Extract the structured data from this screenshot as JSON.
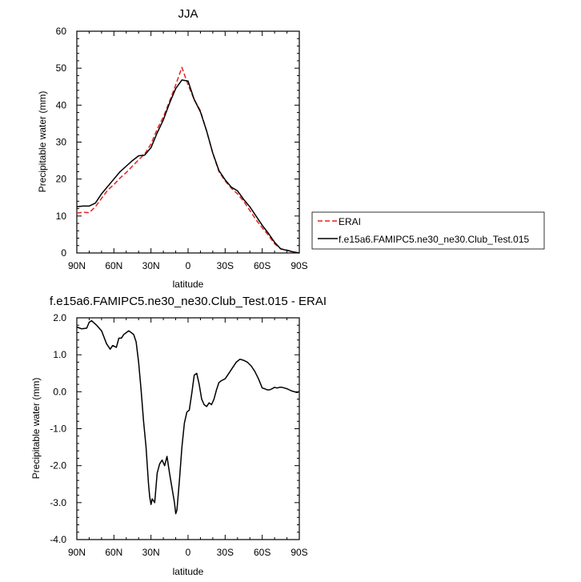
{
  "chart_data": [
    {
      "type": "line",
      "title": "JJA",
      "xlabel": "latitude",
      "ylabel": "Precipitable water (mm)",
      "xlim": [
        90,
        -90
      ],
      "ylim": [
        0,
        60
      ],
      "x_ticks": [
        90,
        60,
        30,
        0,
        -30,
        -60,
        -90
      ],
      "x_tick_labels": [
        "90N",
        "60N",
        "30N",
        "0",
        "30S",
        "60S",
        "90S"
      ],
      "y_ticks": [
        0,
        10,
        20,
        30,
        40,
        50,
        60
      ],
      "y_tick_labels": [
        "0",
        "10",
        "20",
        "30",
        "40",
        "50",
        "60"
      ],
      "grid": false,
      "legend": "right, outside",
      "series": [
        {
          "name": "ERAI",
          "color": "#e32222",
          "dash": "dashed",
          "x": [
            90,
            85,
            80,
            75,
            70,
            65,
            60,
            55,
            50,
            45,
            40,
            35,
            30,
            25,
            20,
            15,
            10,
            5,
            0,
            -5,
            -10,
            -15,
            -20,
            -25,
            -30,
            -35,
            -40,
            -45,
            -50,
            -55,
            -60,
            -65,
            -70,
            -75,
            -80,
            -85,
            -90
          ],
          "values": [
            10.8,
            11,
            10.9,
            12.5,
            14.8,
            17,
            18.5,
            20.3,
            21.8,
            23.5,
            25.2,
            26.8,
            29.5,
            33.5,
            36.8,
            41,
            45.5,
            50.2,
            45.5,
            41.5,
            38.5,
            33,
            27,
            22,
            19.5,
            17.5,
            16,
            14,
            11.5,
            9,
            6.8,
            4.8,
            2.5,
            1.1,
            0.8,
            0.3,
            0
          ]
        },
        {
          "name": "f.e15a6.FAMIPC5.ne30_ne30.Club_Test.015",
          "color": "#000000",
          "dash": "solid",
          "x": [
            90,
            85,
            80,
            75,
            70,
            65,
            60,
            55,
            50,
            45,
            40,
            35,
            30,
            25,
            20,
            15,
            10,
            5,
            0,
            -5,
            -10,
            -15,
            -20,
            -25,
            -30,
            -35,
            -40,
            -45,
            -50,
            -55,
            -60,
            -65,
            -70,
            -75,
            -80,
            -85,
            -90
          ],
          "values": [
            12.5,
            12.7,
            12.7,
            13.5,
            16,
            18,
            20,
            22,
            23.5,
            25,
            26.3,
            26.5,
            28.5,
            32.5,
            36,
            40.5,
            44.5,
            46.8,
            46.5,
            41.5,
            38.2,
            33,
            27,
            22.3,
            19.8,
            17.8,
            16.8,
            14.5,
            12.5,
            10,
            7.5,
            5.3,
            2.9,
            1.1,
            0.7,
            0.3,
            0
          ]
        }
      ]
    },
    {
      "type": "line",
      "title": "f.e15a6.FAMIPC5.ne30_ne30.Club_Test.015 - ERAI",
      "xlabel": "latitude",
      "ylabel": "Precipitable water (mm)",
      "xlim": [
        90,
        -90
      ],
      "ylim": [
        -4,
        2
      ],
      "x_ticks": [
        90,
        60,
        30,
        0,
        -30,
        -60,
        -90
      ],
      "x_tick_labels": [
        "90N",
        "60N",
        "30N",
        "0",
        "30S",
        "60S",
        "90S"
      ],
      "y_ticks": [
        -4,
        -3,
        -2,
        -1,
        0,
        1,
        2
      ],
      "y_tick_labels": [
        "-4.0",
        "-3.0",
        "-2.0",
        "-1.0",
        "0.0",
        "1.0",
        "2.0"
      ],
      "grid": false,
      "series": [
        {
          "color": "#000000",
          "dash": "solid",
          "x": [
            90,
            86,
            82,
            80,
            78,
            74,
            70,
            66,
            63,
            61,
            58,
            56,
            54,
            52,
            50,
            48,
            46,
            44,
            42,
            40,
            38,
            36,
            34,
            32,
            31,
            30,
            29,
            27,
            25,
            23,
            21,
            19,
            17,
            15,
            13,
            11,
            10,
            9,
            7,
            5,
            3,
            1,
            -1,
            -3,
            -5,
            -7,
            -9,
            -11,
            -13,
            -15,
            -17,
            -19,
            -21,
            -23,
            -25,
            -27,
            -30,
            -33,
            -36,
            -39,
            -42,
            -45,
            -48,
            -51,
            -54,
            -57,
            -60,
            -62,
            -64,
            -66,
            -68,
            -70,
            -72,
            -74,
            -76,
            -78,
            -80,
            -82,
            -84,
            -86,
            -88,
            -90
          ],
          "values": [
            1.75,
            1.7,
            1.72,
            1.88,
            1.92,
            1.8,
            1.65,
            1.3,
            1.15,
            1.25,
            1.2,
            1.45,
            1.45,
            1.55,
            1.6,
            1.65,
            1.6,
            1.55,
            1.35,
            0.8,
            0.05,
            -0.8,
            -1.5,
            -2.5,
            -2.85,
            -3.05,
            -2.9,
            -3.0,
            -2.2,
            -1.95,
            -1.85,
            -2.0,
            -1.75,
            -2.2,
            -2.6,
            -3.0,
            -3.3,
            -3.2,
            -2.4,
            -1.5,
            -0.85,
            -0.55,
            -0.5,
            -0.05,
            0.45,
            0.5,
            0.2,
            -0.2,
            -0.35,
            -0.4,
            -0.3,
            -0.35,
            -0.2,
            0.05,
            0.25,
            0.3,
            0.35,
            0.5,
            0.65,
            0.8,
            0.88,
            0.85,
            0.8,
            0.7,
            0.55,
            0.35,
            0.1,
            0.08,
            0.05,
            0.05,
            0.08,
            0.12,
            0.1,
            0.12,
            0.12,
            0.1,
            0.08,
            0.05,
            0.02,
            0.0,
            -0.02,
            0.0
          ]
        }
      ]
    }
  ]
}
